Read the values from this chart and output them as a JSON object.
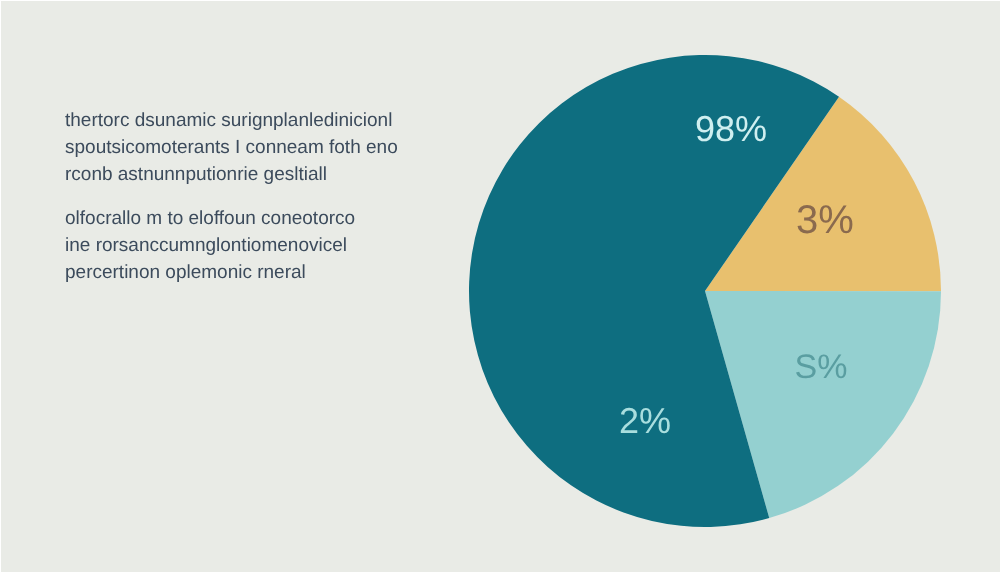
{
  "chart_data": {
    "type": "pie",
    "title": "thertorc dsunamic surignplanledinicionl\nspoutsicomoterants I conneam foth eno\nrconb astnunnputionrie gesltiall",
    "subtitle": "olfocrallo m to eloffoun coneotorco\nine rorsanccumnglontiomenovicel\npercertinon oplemonic rneral",
    "categories": [
      null,
      null,
      null
    ],
    "values": [
      15.4,
      20.6,
      64
    ],
    "colors": [
      "#e8c06e",
      "#94d0d0",
      "#0e6e80"
    ],
    "annotations": [
      "3%",
      "S%",
      "2%",
      "98%"
    ]
  }
}
